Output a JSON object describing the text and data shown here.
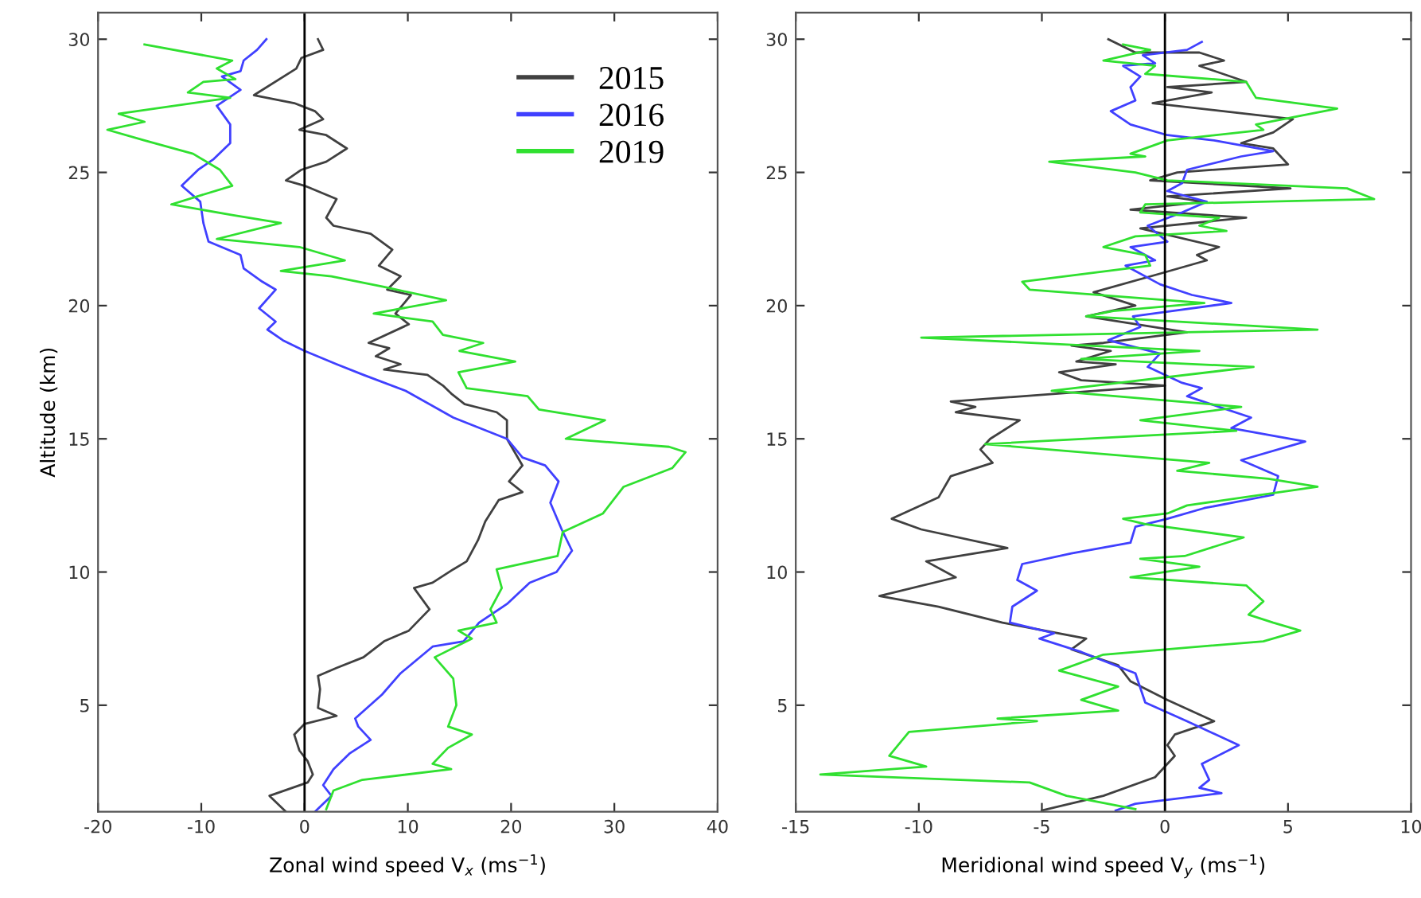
{
  "chart_data": [
    {
      "type": "line",
      "xlabel": "Zonal wind speed V$_{x}$ (ms$^{−1}$)",
      "ylabel": "Altitude (km)",
      "xlim": [
        -20,
        40
      ],
      "ylim": [
        1,
        31
      ],
      "xticks": [
        -20,
        -10,
        0,
        10,
        20,
        30,
        40
      ],
      "yticks": [
        5,
        10,
        15,
        20,
        25,
        30
      ],
      "grid": false,
      "legend": "top right",
      "marker": "none",
      "line_style": "solid",
      "ref_lines": [
        {
          "axis": "x",
          "value": 0,
          "color": "#000000"
        }
      ],
      "series": [
        {
          "name": "2015",
          "color": "#404040",
          "x": [
            1.3,
            1.8,
            -0.3,
            -0.8,
            -4.9,
            -1,
            1,
            1.8,
            -0.5,
            2.1,
            4.1,
            2.1,
            -0.3,
            -1.8,
            0,
            3.1,
            2.1,
            2.8,
            6.4,
            8.5,
            7.2,
            9.3,
            8,
            10.3,
            8.8,
            10.1,
            6.2,
            8.2,
            6.9,
            9.3,
            7.7,
            11.9,
            13.4,
            14.2,
            15.5,
            18.6,
            19.6,
            19.6,
            21.1,
            19.8,
            21.1,
            18.8,
            17.5,
            16.8,
            15.7,
            14.4,
            12.4,
            10.6,
            12.1,
            10.1,
            7.7,
            5.7,
            3.1,
            1.3,
            1.5,
            1.3,
            3.1,
            0,
            -1,
            -0.5,
            0.3,
            0.8,
            0.3,
            -3.4,
            -1.8
          ],
          "values": [
            30,
            29.6,
            29.3,
            28.9,
            27.9,
            27.6,
            27.3,
            27,
            26.6,
            26.4,
            25.9,
            25.4,
            25.1,
            24.7,
            24.5,
            24,
            23.3,
            23,
            22.7,
            22.1,
            21.5,
            21.1,
            20.6,
            20.4,
            19.7,
            19.3,
            18.6,
            18.4,
            18.1,
            17.8,
            17.6,
            17.4,
            17,
            16.7,
            16.3,
            16,
            15.7,
            15,
            14,
            13.4,
            13,
            12.7,
            11.9,
            11.2,
            10.4,
            10.1,
            9.6,
            9.4,
            8.6,
            7.8,
            7.4,
            6.8,
            6.4,
            6.1,
            5.6,
            4.9,
            4.6,
            4.3,
            3.9,
            3.3,
            2.9,
            2.4,
            2.1,
            1.6,
            1.0
          ]
        },
        {
          "name": "2016",
          "color": "#4040ff",
          "x": [
            -3.7,
            -4.6,
            -5.9,
            -6.2,
            -8,
            -6.2,
            -8.5,
            -7.2,
            -7.2,
            -8.8,
            -10.3,
            -11.9,
            -10.1,
            -9.8,
            -9.3,
            -6.2,
            -5.9,
            -4.1,
            -2.8,
            -4.4,
            -2.8,
            -3.6,
            -2.1,
            0,
            3.1,
            5.7,
            9.8,
            14.4,
            19.6,
            21.1,
            23.3,
            24.6,
            23.8,
            24.9,
            25.9,
            24.4,
            21.8,
            19.6,
            16.9,
            15.4,
            12.4,
            9.3,
            7.5,
            4.9,
            5.2,
            6.4,
            4.4,
            2.8,
            1.8,
            2.6,
            1
          ],
          "values": [
            30,
            29.6,
            29.2,
            28.8,
            28.6,
            28.1,
            27.5,
            26.8,
            26.1,
            25.5,
            25.1,
            24.5,
            23.9,
            23.1,
            22.4,
            21.9,
            21.4,
            20.9,
            20.6,
            19.9,
            19.4,
            19.1,
            18.7,
            18.3,
            17.8,
            17.4,
            16.8,
            15.8,
            15,
            14.3,
            14,
            13.4,
            12.6,
            11.6,
            10.8,
            10,
            9.6,
            8.8,
            8.1,
            7.4,
            7.2,
            6.2,
            5.4,
            4.5,
            4.2,
            3.7,
            3.2,
            2.6,
            2,
            1.6,
            1
          ]
        },
        {
          "name": "2019",
          "color": "#30e030",
          "x": [
            -15.5,
            -7,
            -8.5,
            -6.7,
            -9.8,
            -11.3,
            -7.2,
            -18,
            -15.5,
            -19.1,
            -15.5,
            -10.8,
            -8.2,
            -7,
            -12.9,
            -7,
            -2.3,
            -8.5,
            -0.5,
            3.9,
            -2.3,
            2.6,
            7.7,
            13.7,
            6.7,
            12.4,
            13.4,
            17.3,
            15,
            20.4,
            14.9,
            15.7,
            21.6,
            22.7,
            29.1,
            25.3,
            35.3,
            36.9,
            35.6,
            30.9,
            28.9,
            25,
            24.5,
            18.6,
            19.1,
            18,
            18.6,
            14.9,
            16.2,
            12.6,
            14.4,
            14.7,
            13.9,
            16.2,
            13.9,
            12.4,
            14.2,
            5.6,
            2.8,
            2.1
          ],
          "values": [
            29.8,
            29.2,
            28.9,
            28.5,
            28.4,
            28,
            27.8,
            27.2,
            26.9,
            26.6,
            26.2,
            25.7,
            25.1,
            24.5,
            23.8,
            23.4,
            23.1,
            22.5,
            22.2,
            21.7,
            21.3,
            21.1,
            20.7,
            20.2,
            19.7,
            19.4,
            18.9,
            18.6,
            18.3,
            17.9,
            17.5,
            16.9,
            16.6,
            16.1,
            15.7,
            15,
            14.7,
            14.5,
            13.9,
            13.2,
            12.2,
            11.5,
            10.6,
            10.1,
            9.4,
            8.6,
            8.1,
            7.8,
            7.5,
            6.8,
            6,
            5,
            4.2,
            3.9,
            3.4,
            2.8,
            2.6,
            2.2,
            1.8,
            1.1
          ]
        }
      ]
    },
    {
      "type": "line",
      "xlabel": "Meridional wind speed V$_{y}$ (ms$^{−1}$)",
      "xlim": [
        -15,
        10
      ],
      "ylim": [
        1,
        31
      ],
      "xticks": [
        -15,
        -10,
        -5,
        0,
        5,
        10
      ],
      "yticks": [
        5,
        10,
        15,
        20,
        25,
        30
      ],
      "grid": false,
      "marker": "none",
      "line_style": "solid",
      "ref_lines": [
        {
          "axis": "x",
          "value": 0,
          "color": "#000000"
        }
      ],
      "series": [
        {
          "color": "#404040",
          "x": [
            -2.3,
            -1.2,
            1.4,
            2.4,
            1.4,
            3.3,
            0.1,
            1.9,
            -0.5,
            5.2,
            4.4,
            3.1,
            4.4,
            5,
            0.5,
            -0.6,
            5.1,
            0.1,
            1.6,
            -1.4,
            3.3,
            -1,
            2.2,
            1.3,
            1.7,
            -0.2,
            -2.9,
            -1.2,
            -3.2,
            0.9,
            -2.5,
            -3.8,
            -2.2,
            -3.6,
            -2,
            -4.3,
            -3.4,
            0,
            -8.7,
            -7.7,
            -8.5,
            -5.9,
            -7.1,
            -7.5,
            -7,
            -8.7,
            -9.2,
            -11.1,
            -9.9,
            -6.4,
            -9.7,
            -8.5,
            -11.6,
            -9.2,
            -6.6,
            -3.2,
            -3.8,
            -1.9,
            -1.4,
            0.1,
            2,
            0.4,
            0.1,
            0.4,
            -0.4,
            -2.5,
            -5
          ],
          "values": [
            30,
            29.5,
            29.5,
            29.2,
            29,
            28.4,
            28.2,
            28,
            27.6,
            27,
            26.5,
            26.1,
            25.9,
            25.3,
            25,
            24.7,
            24.4,
            24.1,
            23.9,
            23.6,
            23.3,
            22.9,
            22.2,
            21.9,
            21.7,
            21.2,
            20.5,
            20,
            19.6,
            19,
            18.6,
            18.5,
            18.3,
            17.9,
            17.8,
            17.5,
            17.2,
            17,
            16.4,
            16.2,
            16,
            15.7,
            15,
            14.6,
            14.1,
            13.6,
            12.8,
            12,
            11.6,
            10.9,
            10.4,
            9.8,
            9.1,
            8.7,
            8.1,
            7.5,
            7.1,
            6.5,
            5.9,
            5.2,
            4.4,
            3.9,
            3.5,
            3.1,
            2.3,
            1.6,
            1.05
          ]
        },
        {
          "color": "#4040ff",
          "x": [
            1.5,
            0.9,
            -0.9,
            -0.4,
            -1.7,
            -1,
            -1.4,
            -1.2,
            -2.2,
            -1.4,
            0.1,
            2,
            4.4,
            3.1,
            0.9,
            0.7,
            0.1,
            1.7,
            0.7,
            -0.7,
            0.1,
            -1.4,
            -0.4,
            -1.6,
            -0.2,
            1.1,
            2.7,
            0.3,
            -1.3,
            -1,
            -2.3,
            -0.2,
            -0.7,
            0.7,
            1.5,
            0.9,
            2.2,
            3.5,
            2.7,
            5.7,
            3.1,
            4.6,
            4.4,
            1.6,
            0.1,
            -1.2,
            -1.4,
            -3.8,
            -5.8,
            -6,
            -5.2,
            -6.2,
            -6.3,
            -4.5,
            -5.1,
            -3.4,
            -1.2,
            -0.8,
            0.9,
            3,
            1.5,
            1.8,
            1.4,
            2.3,
            -1.2,
            -2
          ],
          "values": [
            29.9,
            29.6,
            29.4,
            29.1,
            29,
            28.6,
            28.2,
            27.7,
            27.3,
            26.8,
            26.4,
            26.2,
            25.8,
            25.6,
            25.1,
            24.6,
            24.3,
            23.9,
            23.5,
            23,
            22.4,
            22.2,
            21.7,
            21.5,
            20.8,
            20.4,
            20.1,
            19.8,
            19.6,
            19.2,
            18.7,
            18.2,
            17.7,
            17.1,
            16.9,
            16.6,
            16.2,
            15.8,
            15.4,
            14.9,
            14.2,
            13.6,
            12.9,
            12.4,
            12,
            11.7,
            11.1,
            10.7,
            10.3,
            9.7,
            9.3,
            8.7,
            8.1,
            7.7,
            7.5,
            7,
            6.2,
            5.1,
            4.4,
            3.5,
            2.8,
            2.2,
            1.9,
            1.7,
            1.3,
            1.05
          ]
        },
        {
          "color": "#30e030",
          "x": [
            -1.7,
            -0.6,
            -2.5,
            -0.4,
            -0.8,
            3.3,
            3.7,
            7,
            3.7,
            4,
            0.1,
            -1.4,
            -0.8,
            -4.7,
            -1.2,
            0.1,
            7.4,
            8.5,
            -0.8,
            -1,
            2.2,
            1.4,
            2.5,
            -1.2,
            -2.5,
            -0.8,
            -0.6,
            -5.8,
            -5.5,
            1.6,
            -2.1,
            -3.2,
            6.2,
            -9.9,
            1.4,
            -3.4,
            3.6,
            -4.6,
            3.1,
            -1,
            2.9,
            -7.3,
            1.8,
            0.5,
            4.2,
            6.2,
            0.9,
            0.1,
            -1.7,
            -0.8,
            3.2,
            0.8,
            -1,
            1.4,
            -1.4,
            3.3,
            4,
            3.4,
            4.4,
            5.5,
            4,
            -2.5,
            -4.3,
            -1.9,
            -3.4,
            -1.9,
            -6.8,
            -5.2,
            -10.4,
            -11.2,
            -9.7,
            -14,
            -5.5,
            -4,
            -1.2
          ],
          "values": [
            29.8,
            29.6,
            29.2,
            29,
            28.7,
            28.4,
            27.8,
            27.4,
            26.8,
            26.6,
            26.2,
            25.7,
            25.6,
            25.4,
            25,
            24.7,
            24.4,
            24,
            23.8,
            23.5,
            23.3,
            23,
            22.8,
            22.6,
            22.2,
            21.9,
            21.5,
            20.9,
            20.6,
            20.1,
            19.8,
            19.6,
            19.1,
            18.8,
            18.3,
            18,
            17.7,
            16.8,
            16.2,
            15.7,
            15.3,
            14.8,
            14.1,
            13.8,
            13.5,
            13.2,
            12.5,
            12.2,
            12,
            11.8,
            11.3,
            10.6,
            10.5,
            10.2,
            9.8,
            9.5,
            8.9,
            8.4,
            8.1,
            7.8,
            7.4,
            6.9,
            6.3,
            5.7,
            5.2,
            4.8,
            4.5,
            4.4,
            4,
            3.1,
            2.7,
            2.4,
            2.1,
            1.6,
            1.1
          ]
        }
      ]
    }
  ]
}
